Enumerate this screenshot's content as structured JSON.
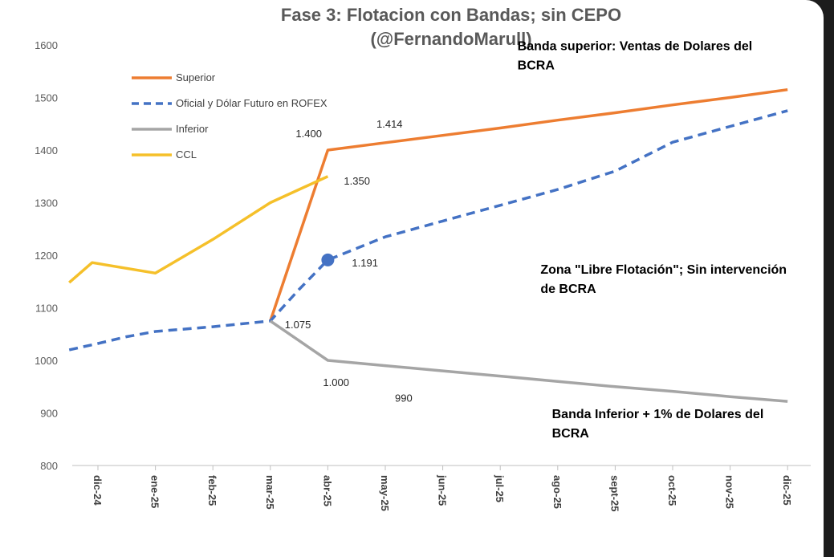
{
  "chart_data": {
    "type": "line",
    "title": "Fase 3: Flotacion con Bandas; sin CEPO",
    "subtitle": "(@FernandoMarull)",
    "xlabel": "",
    "ylabel": "",
    "ylim": [
      800,
      1600
    ],
    "yticks": [
      800,
      900,
      1000,
      1100,
      1200,
      1300,
      1400,
      1500,
      1600
    ],
    "grid": false,
    "legend": "top-left",
    "categories": [
      "dic-24",
      "ene-25",
      "feb-25",
      "mar-25",
      "abr-25",
      "may-25",
      "jun-25",
      "jul-25",
      "ago-25",
      "sept-25",
      "oct-25",
      "nov-25",
      "dic-25"
    ],
    "series": [
      {
        "name": "Superior",
        "color": "#ED7D31",
        "style": "solid",
        "points": [
          [
            3,
            1075
          ],
          [
            4,
            1400
          ],
          [
            5,
            1414
          ],
          [
            6,
            1428
          ],
          [
            7,
            1442
          ],
          [
            8,
            1457
          ],
          [
            9,
            1471
          ],
          [
            10,
            1486
          ],
          [
            11,
            1500
          ],
          [
            12,
            1515
          ]
        ]
      },
      {
        "name": "Oficial y Dólar Futuro en ROFEX",
        "color": "#4472C4",
        "style": "dashed",
        "points": [
          [
            -0.5,
            1020
          ],
          [
            0,
            1032
          ],
          [
            0.5,
            1045
          ],
          [
            1,
            1055
          ],
          [
            2,
            1064
          ],
          [
            3,
            1075
          ],
          [
            3.5,
            1135
          ],
          [
            4,
            1191
          ],
          [
            5,
            1235
          ],
          [
            6,
            1265
          ],
          [
            7,
            1295
          ],
          [
            8,
            1325
          ],
          [
            9,
            1360
          ],
          [
            10,
            1415
          ],
          [
            11,
            1445
          ],
          [
            12,
            1475
          ]
        ]
      },
      {
        "name": "Inferior",
        "color": "#A5A5A5",
        "style": "solid",
        "points": [
          [
            3,
            1075
          ],
          [
            4,
            1000
          ],
          [
            5,
            990
          ],
          [
            6,
            980
          ],
          [
            7,
            970
          ],
          [
            8,
            960
          ],
          [
            9,
            950
          ],
          [
            10,
            941
          ],
          [
            11,
            931
          ],
          [
            12,
            922
          ]
        ]
      },
      {
        "name": "CCL",
        "color": "#F5C02A",
        "style": "solid",
        "points": [
          [
            -0.5,
            1148
          ],
          [
            -0.1,
            1186
          ],
          [
            1,
            1166
          ],
          [
            2,
            1230
          ],
          [
            3,
            1300
          ],
          [
            4,
            1350
          ]
        ]
      }
    ],
    "markers": [
      {
        "series": "Oficial y Dólar Futuro en ROFEX",
        "x": 4,
        "y": 1191,
        "color": "#4472C4"
      }
    ],
    "data_labels": [
      {
        "text": "1.400",
        "x": 4,
        "y": 1400,
        "pos": "above-left"
      },
      {
        "text": "1.414",
        "x": 5,
        "y": 1414,
        "pos": "above"
      },
      {
        "text": "1.350",
        "x": 4,
        "y": 1350,
        "pos": "right"
      },
      {
        "text": "1.191",
        "x": 4,
        "y": 1191,
        "pos": "right"
      },
      {
        "text": "1.075",
        "x": 3,
        "y": 1075,
        "pos": "right"
      },
      {
        "text": "1.000",
        "x": 4,
        "y": 1000,
        "pos": "below"
      },
      {
        "text": "990",
        "x": 5,
        "y": 990,
        "pos": "below"
      }
    ],
    "annotations": [
      {
        "lines": [
          "Banda superior: Ventas de Dolares del",
          "BCRA"
        ],
        "x": 7.3,
        "y": 1590
      },
      {
        "lines": [
          "Zona \"Libre Flotación\"; Sin intervención",
          "de BCRA"
        ],
        "x": 7.7,
        "y": 1165
      },
      {
        "lines": [
          "Banda Inferior + 1% de Dolares del",
          "BCRA"
        ],
        "x": 7.9,
        "y": 890
      }
    ]
  }
}
